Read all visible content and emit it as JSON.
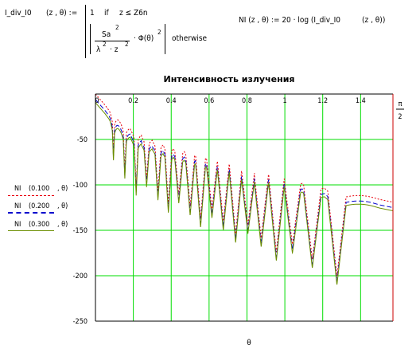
{
  "formula_left": {
    "name": "I_div_I0",
    "args": "(z , θ) :=",
    "case1_value": "1",
    "case1_if": "if",
    "case1_cond": "z ≤ Z6n",
    "frac_num": "Sa",
    "frac_num_exp": "2",
    "frac_den": "λ",
    "frac_den_exp": "2",
    "frac_den_rest": "· z",
    "frac_den_exp2": "2",
    "phi": "· Φ(θ)",
    "phi_exp": "2",
    "otherwise": "otherwise"
  },
  "formula_right": {
    "lhs": "NI  (z , θ) :=  20 · log (I_div_I0",
    "args": "(z , θ))"
  },
  "legend": [
    {
      "label": "NI",
      "arg": "(0.100",
      "rest": ", θ)",
      "color": "#e8000b"
    },
    {
      "label": "NI",
      "arg": "(0.200",
      "rest": ", θ)",
      "color": "#0000cc"
    },
    {
      "label": "NI",
      "arg": "(0.300",
      "rest": ", θ)",
      "color": "#6b8e00"
    }
  ],
  "chart_data": {
    "type": "line",
    "title": "Интенсивность излучения",
    "xlabel": "θ",
    "ylabel": "",
    "xlim": [
      0,
      1.5708
    ],
    "ylim": [
      -250,
      0
    ],
    "x_ticks": [
      "0",
      "0.2",
      "0.4",
      "0.6",
      "0.8",
      "1",
      "1.2",
      "1.4"
    ],
    "y_ticks": [
      "-50",
      "-100",
      "-150",
      "-200",
      "-250"
    ],
    "x_tick_values": [
      0,
      0.2,
      0.4,
      0.6,
      0.8,
      1.0,
      1.2,
      1.4
    ],
    "y_tick_values": [
      -50,
      -100,
      -150,
      -200,
      -250
    ],
    "right_marker_top": "π",
    "right_marker_bottom": "2",
    "grid": true,
    "grid_color": "#00dd00",
    "marker_color": "#cc0000",
    "series": [
      {
        "name": "NI(0.100, θ)",
        "color": "#e8000b",
        "dash": "2,2",
        "offset": 0
      },
      {
        "name": "NI(0.200, θ)",
        "color": "#0000cc",
        "dash": "6,3",
        "offset": -6
      },
      {
        "name": "NI(0.300, θ)",
        "color": "#6b8e00",
        "dash": "",
        "offset": -9.5
      }
    ],
    "envelope": {
      "theta": [
        0,
        0.05,
        0.1,
        0.2,
        0.3,
        0.4,
        0.5,
        0.6,
        0.7,
        0.8,
        0.9,
        1.0,
        1.1,
        1.2,
        1.3,
        1.4,
        1.5,
        1.5708
      ],
      "value": [
        0,
        -12,
        -26,
        -40,
        -48,
        -54,
        -59,
        -64,
        -69,
        -74,
        -80,
        -86,
        -92,
        -97,
        -104,
        -110,
        -116,
        -119
      ]
    },
    "nulls": [
      0.095,
      0.155,
      0.215,
      0.27,
      0.33,
      0.385,
      0.44,
      0.5,
      0.555,
      0.615,
      0.675,
      0.74,
      0.805,
      0.875,
      0.955,
      1.04,
      1.145,
      1.275
    ]
  }
}
